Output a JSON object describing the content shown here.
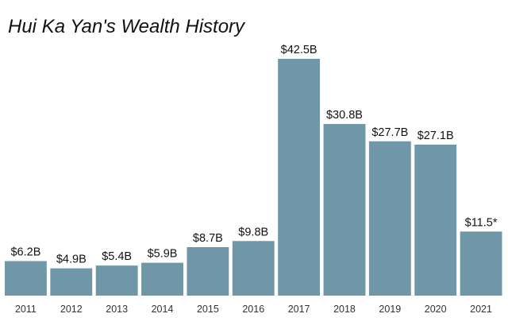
{
  "chart_data": {
    "type": "bar",
    "title": "Hui Ka Yan's Wealth History",
    "xlabel": "",
    "ylabel": "",
    "ylim": [
      0,
      44
    ],
    "grid": false,
    "legend": "none",
    "categories": [
      "2011",
      "2012",
      "2013",
      "2014",
      "2015",
      "2016",
      "2017",
      "2018",
      "2019",
      "2020",
      "2021"
    ],
    "values": [
      6.2,
      4.9,
      5.4,
      5.9,
      8.7,
      9.8,
      42.5,
      30.8,
      27.7,
      27.1,
      11.5
    ],
    "labels": [
      "$6.2B",
      "$4.9B",
      "$5.4B",
      "$5.9B",
      "$8.7B",
      "$9.8B",
      "$42.5B",
      "$30.8B",
      "$27.7B",
      "$27.1B",
      "$11.5*"
    ],
    "bar_color": "#7097a8"
  }
}
